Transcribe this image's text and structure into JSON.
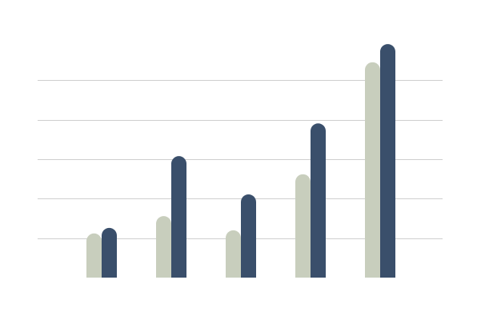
{
  "chart_data": {
    "type": "bar",
    "categories": [
      null,
      null,
      null,
      null,
      null
    ],
    "series": [
      {
        "color": "#c8cebd",
        "values": [
          1.12,
          1.56,
          1.2,
          2.62,
          5.46
        ]
      },
      {
        "color": "#3a4f6b",
        "values": [
          1.26,
          3.08,
          2.11,
          3.91,
          5.92
        ]
      }
    ],
    "ylim": [
      0,
      6
    ],
    "yticks": [
      1,
      2,
      3,
      4,
      5
    ],
    "grid": true
  }
}
